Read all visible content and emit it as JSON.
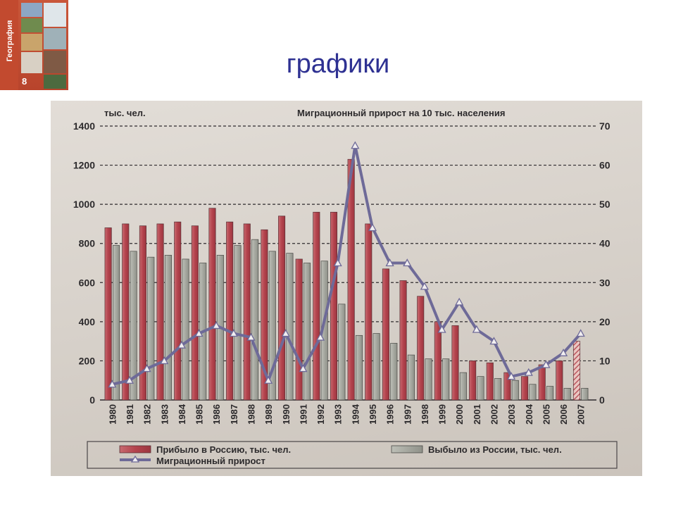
{
  "slide": {
    "title": "графики"
  },
  "book_cover": {
    "subject": "География",
    "grade": "8"
  },
  "chart_data": {
    "type": "bar",
    "title": "Миграционный прирост на 10 тыс. населения",
    "left_axis_label": "тыс. чел.",
    "left_axis_ticks": [
      0,
      200,
      400,
      600,
      800,
      1000,
      1200,
      1400
    ],
    "right_axis_ticks": [
      0,
      10,
      20,
      30,
      40,
      50,
      60,
      70
    ],
    "ylim": [
      0,
      1400
    ],
    "y2lim": [
      0,
      70
    ],
    "grid": "dashed",
    "legend_position": "bottom",
    "categories": [
      "1980",
      "1981",
      "1982",
      "1983",
      "1984",
      "1985",
      "1986",
      "1987",
      "1988",
      "1989",
      "1990",
      "1991",
      "1992",
      "1993",
      "1994",
      "1995",
      "1996",
      "1997",
      "1998",
      "1999",
      "2000",
      "2001",
      "2002",
      "2003",
      "2004",
      "2005",
      "2006",
      "2007"
    ],
    "series": [
      {
        "name": "Прибыло в Россию, тыс. чел.",
        "kind": "bar",
        "axis": "left",
        "color": "#b64b54",
        "values": [
          880,
          900,
          890,
          900,
          910,
          890,
          980,
          910,
          900,
          870,
          940,
          720,
          960,
          960,
          1230,
          900,
          670,
          610,
          530,
          400,
          380,
          200,
          190,
          140,
          120,
          180,
          200,
          300
        ]
      },
      {
        "name": "Выбыло из России, тыс. чел.",
        "kind": "bar",
        "axis": "left",
        "color": "#a9aba3",
        "values": [
          790,
          760,
          730,
          740,
          720,
          700,
          740,
          790,
          820,
          760,
          750,
          700,
          710,
          490,
          330,
          340,
          290,
          230,
          210,
          210,
          140,
          120,
          110,
          100,
          80,
          70,
          60,
          60
        ]
      },
      {
        "name": "Миграционный прирост",
        "kind": "line",
        "axis": "right",
        "color": "#6e6a98",
        "values": [
          4,
          5,
          8,
          10,
          14,
          17,
          19,
          17,
          16,
          5,
          17,
          8,
          16,
          35,
          65,
          44,
          35,
          35,
          29,
          18,
          25,
          18,
          15,
          6,
          7,
          9,
          12,
          17
        ]
      }
    ],
    "hatched_last_bar": true
  }
}
